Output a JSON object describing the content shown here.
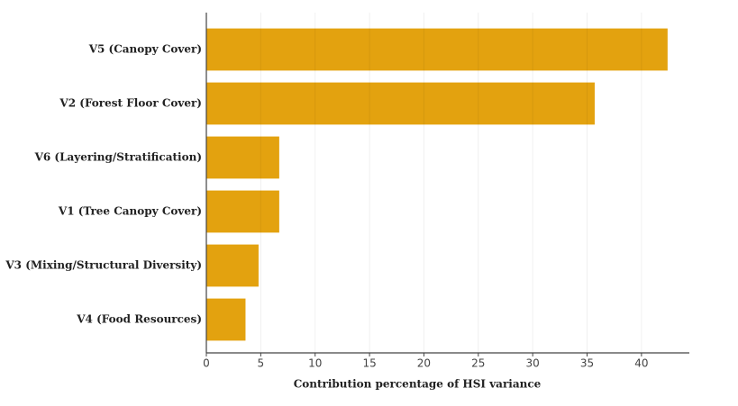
{
  "chart_data": {
    "type": "bar",
    "orientation": "horizontal",
    "xlabel": "Contribution percentage of HSI variance",
    "categories": [
      "V5 (Canopy Cover)",
      "V2 (Forest Floor Cover)",
      "V6 (Layering/Stratification)",
      "V1 (Tree Canopy Cover)",
      "V3 (Mixing/Structural Diversity)",
      "V4 (Food Resources)"
    ],
    "values": [
      42.4,
      35.7,
      6.7,
      6.7,
      4.8,
      3.6
    ],
    "color": "#e3a20f",
    "xlim": [
      0,
      44.4
    ],
    "xticks": [
      0,
      5,
      10,
      15,
      20,
      25,
      30,
      35,
      40
    ],
    "grid": true
  }
}
